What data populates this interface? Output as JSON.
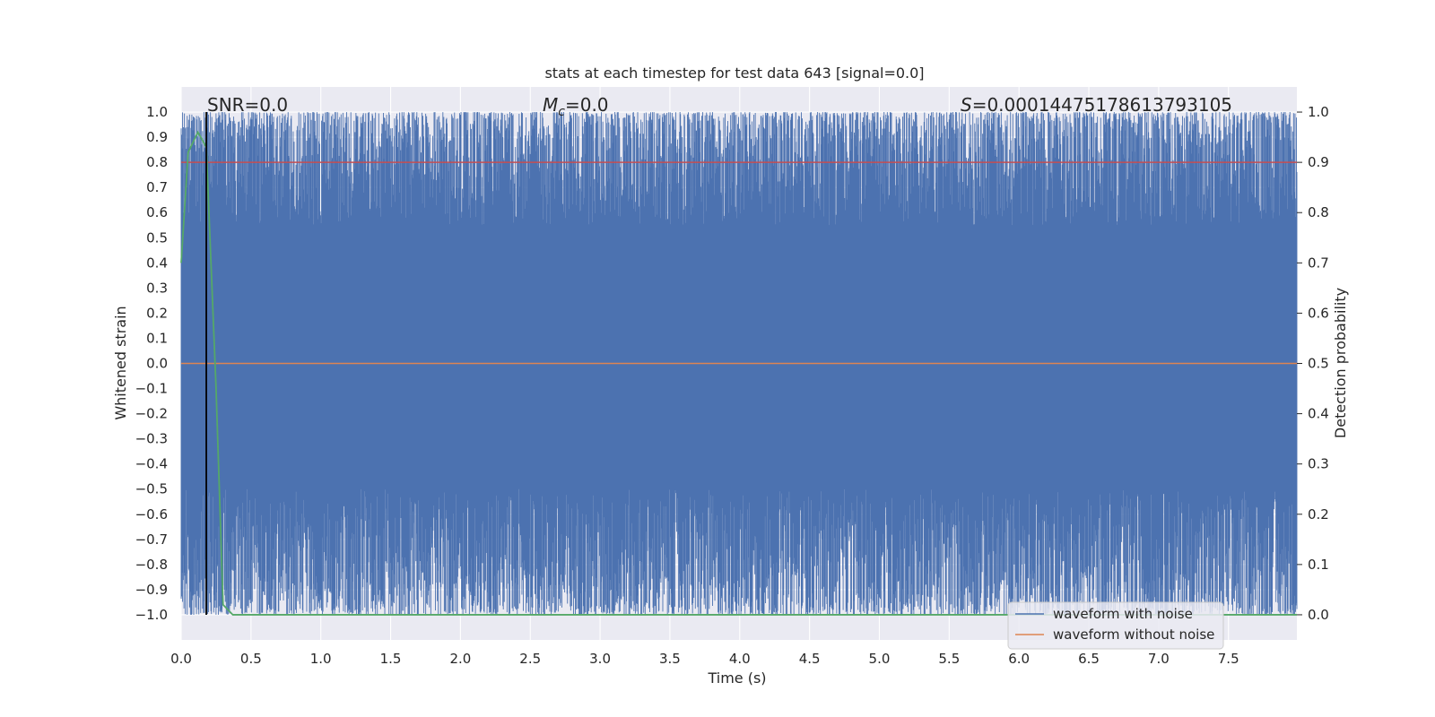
{
  "chart_data": {
    "type": "line",
    "title": "stats at each timestep for test data 643 [signal=0.0]",
    "xlabel": "Time (s)",
    "ylabel_left": "Whitened strain",
    "ylabel_right": "Detection probability",
    "xlim": [
      0.0,
      7.99
    ],
    "ylim_left": [
      -1.1,
      1.1
    ],
    "ylim_right": [
      -0.05,
      1.05
    ],
    "x_ticks": [
      "0.0",
      "0.5",
      "1.0",
      "1.5",
      "2.0",
      "2.5",
      "3.0",
      "3.5",
      "4.0",
      "4.5",
      "5.0",
      "5.5",
      "6.0",
      "6.5",
      "7.0",
      "7.5"
    ],
    "y_left_ticks": [
      "1.0",
      "0.9",
      "0.8",
      "0.7",
      "0.6",
      "0.5",
      "0.4",
      "0.3",
      "0.2",
      "0.1",
      "0.0",
      "−0.1",
      "−0.2",
      "−0.3",
      "−0.4",
      "−0.5",
      "−0.6",
      "−0.7",
      "−0.8",
      "−0.9",
      "−1.0"
    ],
    "y_right_ticks": [
      "1.0",
      "0.9",
      "0.8",
      "0.7",
      "0.6",
      "0.5",
      "0.4",
      "0.3",
      "0.2",
      "0.1",
      "0.0"
    ],
    "grid": true,
    "annotations": {
      "snr": "SNR=0.0",
      "mc_symbol": "M",
      "mc_sub": "c",
      "mc_value": "=0.0",
      "s_symbol": "S",
      "s_value": "=0.00014475178613793105"
    },
    "legend": {
      "placement": "lower right",
      "entries": [
        "waveform with noise",
        "waveform without noise"
      ]
    },
    "colors": {
      "background": "#eaeaf2",
      "grid": "#ffffff",
      "noise": "#4c72b0",
      "clean": "#dd8452",
      "probability": "#55a868",
      "threshold": "#c44e52",
      "marker": "#000000"
    },
    "series": [
      {
        "name": "waveform with noise",
        "description_values": "whitened strain noise, amplitude between -1.0 and 1.0 over 0 to 8 s"
      },
      {
        "name": "waveform without noise",
        "x": [
          0.0,
          7.99
        ],
        "y": [
          0.0,
          0.0
        ]
      },
      {
        "axis": "right",
        "x": [
          0.0,
          0.05,
          0.12,
          0.18,
          0.25,
          0.3,
          0.37,
          7.99
        ],
        "y": [
          0.7,
          0.92,
          0.96,
          0.93,
          0.45,
          0.02,
          0.0,
          0.0
        ]
      },
      {
        "axis": "right",
        "x": [
          0.0,
          7.99
        ],
        "y": [
          0.9,
          0.9
        ]
      }
    ],
    "vertical_marker_x": 0.18
  }
}
